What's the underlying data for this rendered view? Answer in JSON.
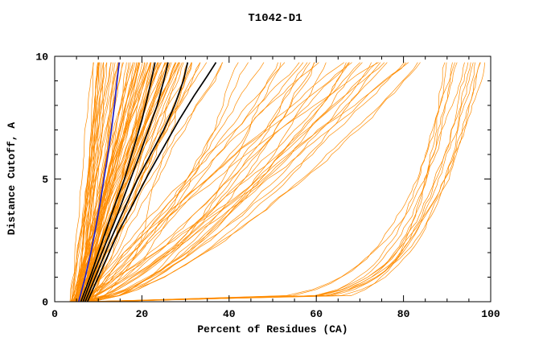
{
  "chart_data": {
    "type": "line",
    "title": "T1042-D1",
    "xlabel": "Percent of Residues (CA)",
    "ylabel": "Distance Cutoff, A",
    "xlim": [
      0,
      100
    ],
    "ylim": [
      0,
      10
    ],
    "x_ticks": [
      0,
      20,
      40,
      60,
      80,
      100
    ],
    "y_ticks": [
      0,
      5,
      10
    ],
    "x_minor_step": 5,
    "y_minor_step": 1,
    "grid": false,
    "legend": "none",
    "box": true,
    "colors": {
      "ensemble": "#ff8c00",
      "highlight": "#000000",
      "reference": "#2020cc"
    },
    "seed": 1042,
    "curve_y_top": 9.75,
    "ensemble_families": [
      {
        "name": "left-steep-cluster",
        "count": 72,
        "x0": [
          3.5,
          8.0
        ],
        "xtop": [
          9,
          30
        ],
        "p": [
          0.8,
          1.35
        ],
        "wave": 0.45
      },
      {
        "name": "middle-fan",
        "count": 42,
        "x0": [
          4.0,
          9.0
        ],
        "xtop": [
          30,
          86
        ],
        "p": [
          0.5,
          1.25
        ],
        "wave": 1.1
      },
      {
        "name": "right-flat-then-steep",
        "count": 13,
        "x0": [
          5.0,
          12.0
        ],
        "xtop": [
          88,
          100
        ],
        "p": [
          0.07,
          0.18
        ],
        "wave": 0.9
      }
    ],
    "highlight_series": [
      {
        "name": "black-model-1",
        "color": "#000000",
        "width": 1.7,
        "points": [
          [
            6,
            0
          ],
          [
            8.5,
            1.2
          ],
          [
            11,
            2.5
          ],
          [
            13.5,
            3.8
          ],
          [
            16,
            5
          ],
          [
            18,
            6.2
          ],
          [
            20,
            7.4
          ],
          [
            21.5,
            8.5
          ],
          [
            22.5,
            9.3
          ],
          [
            23,
            9.75
          ]
        ]
      },
      {
        "name": "black-model-2",
        "color": "#000000",
        "width": 1.7,
        "points": [
          [
            6.5,
            0
          ],
          [
            9,
            1.2
          ],
          [
            12,
            2.5
          ],
          [
            14.5,
            3.6
          ],
          [
            17,
            4.8
          ],
          [
            19.5,
            6
          ],
          [
            21.5,
            7
          ],
          [
            23.5,
            8
          ],
          [
            25,
            9
          ],
          [
            26,
            9.75
          ]
        ]
      },
      {
        "name": "black-model-3",
        "color": "#000000",
        "width": 1.7,
        "points": [
          [
            7,
            0
          ],
          [
            10,
            1.3
          ],
          [
            13,
            2.6
          ],
          [
            16,
            3.8
          ],
          [
            19,
            5
          ],
          [
            22,
            6
          ],
          [
            25,
            7
          ],
          [
            27.5,
            8
          ],
          [
            29.5,
            9
          ],
          [
            30.5,
            9.75
          ]
        ]
      },
      {
        "name": "black-model-4",
        "color": "#000000",
        "width": 1.7,
        "points": [
          [
            7.5,
            0
          ],
          [
            11,
            1.4
          ],
          [
            14.5,
            2.8
          ],
          [
            18,
            4
          ],
          [
            21.5,
            5.2
          ],
          [
            25,
            6.3
          ],
          [
            28.5,
            7.4
          ],
          [
            32,
            8.4
          ],
          [
            35,
            9.2
          ],
          [
            37,
            9.75
          ]
        ]
      },
      {
        "name": "blue-reference",
        "color": "#2020cc",
        "width": 1.7,
        "points": [
          [
            5.5,
            0
          ],
          [
            7,
            1
          ],
          [
            8.3,
            2
          ],
          [
            9.4,
            3
          ],
          [
            10.4,
            4
          ],
          [
            11.3,
            5
          ],
          [
            12.2,
            6
          ],
          [
            13,
            7
          ],
          [
            13.7,
            8
          ],
          [
            14.3,
            9
          ],
          [
            14.8,
            9.75
          ]
        ]
      }
    ]
  }
}
